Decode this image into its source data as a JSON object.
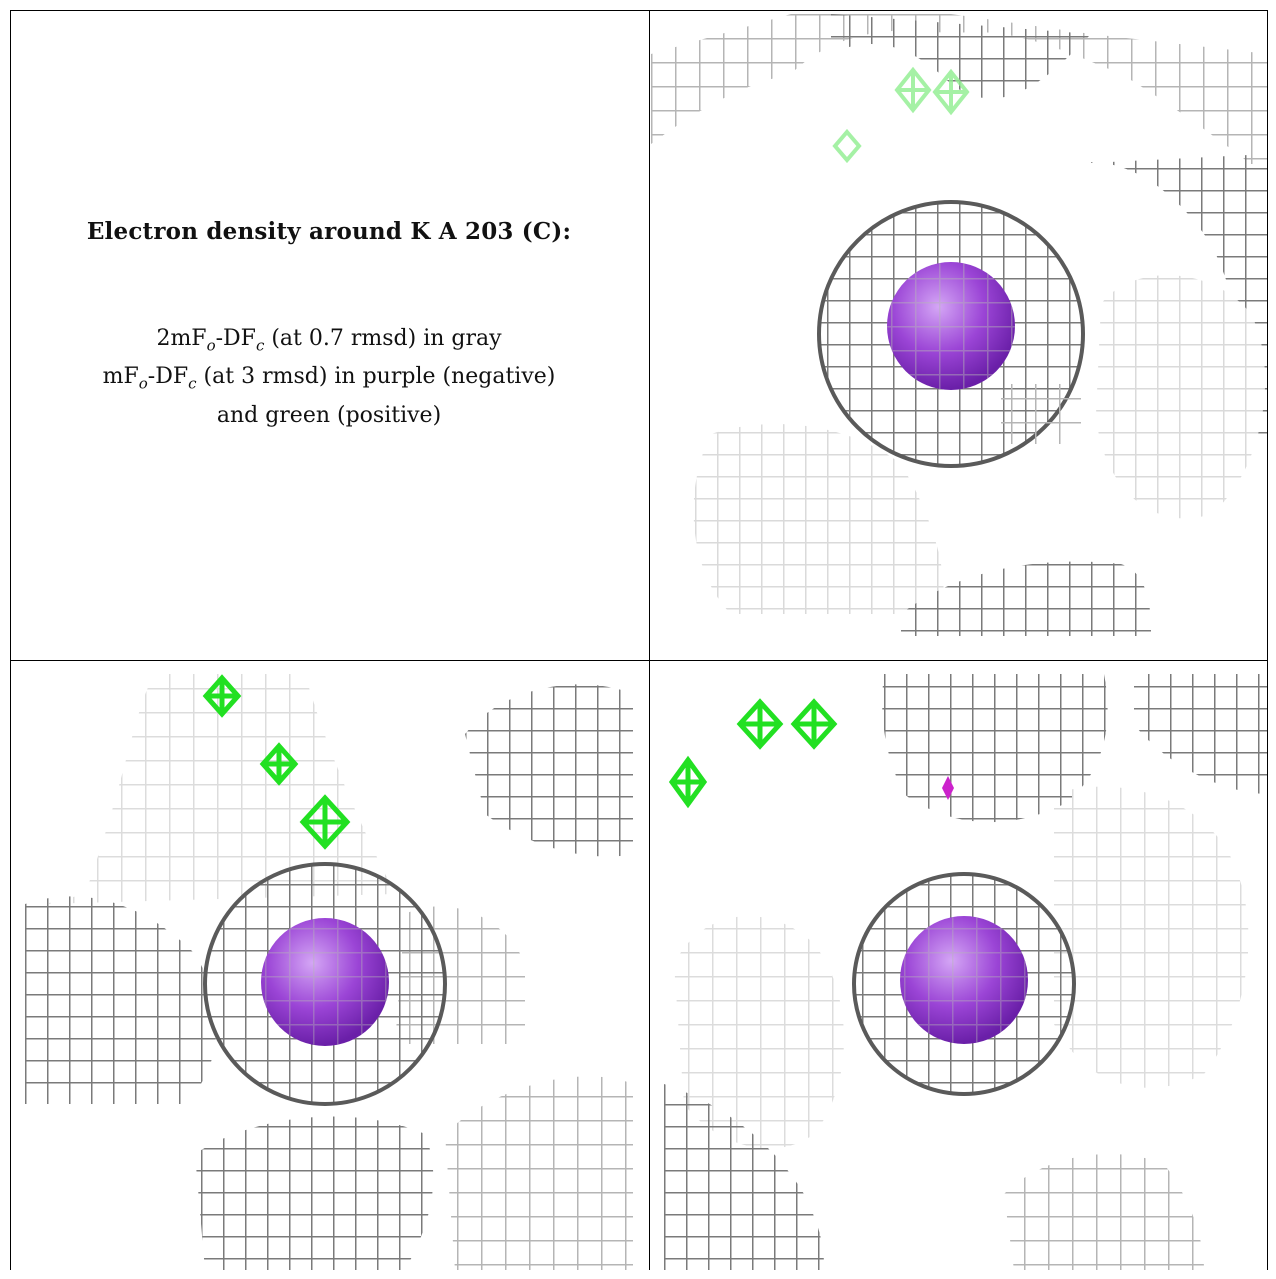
{
  "caption": {
    "title": "Electron density around K A 203 (C):",
    "line1": {
      "a": "2mF",
      "sub1": "o",
      "b": "-DF",
      "sub2": "c",
      "c": " (at 0.7 rmsd) in gray"
    },
    "line2": {
      "a": "mF",
      "sub1": "o",
      "b": "-DF",
      "sub2": "c",
      "c": " (at 3 rmsd) in purple (negative)"
    },
    "line3": "and green (positive)"
  },
  "colors": {
    "mesh_dark": "#6e6e6e",
    "mesh_mid": "#a8a8a8",
    "mesh_light": "#d8d8d8",
    "ion": "#9b45d6",
    "positive_density": "#22e022",
    "negative_density": "#cc22cc"
  },
  "panels": [
    {
      "id": "top-right",
      "ion": "K A 203"
    },
    {
      "id": "bottom-left",
      "ion": "K A 203"
    },
    {
      "id": "bottom-right",
      "ion": "K A 203"
    }
  ]
}
